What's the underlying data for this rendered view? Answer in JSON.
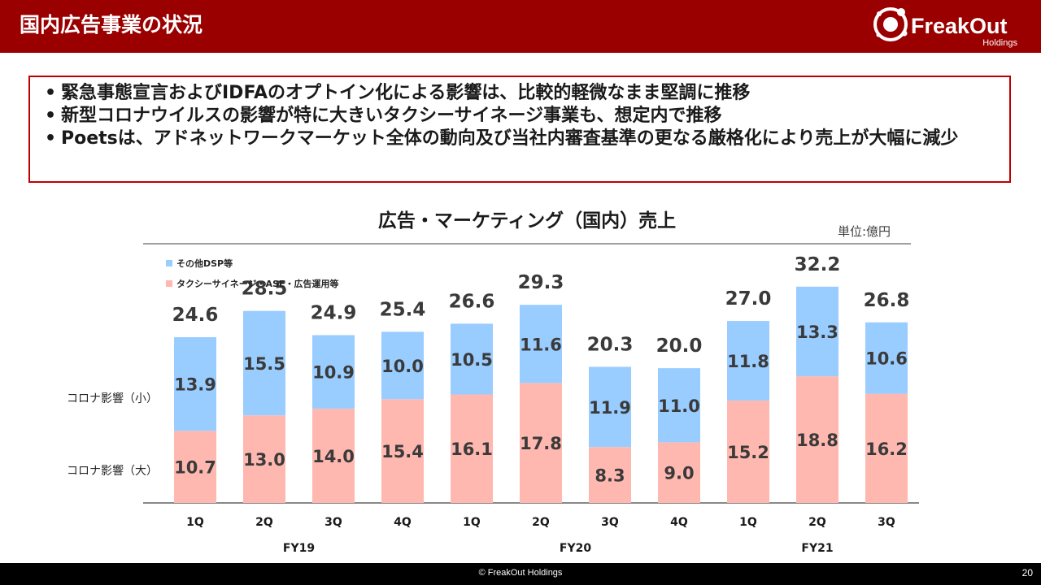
{
  "header": {
    "title": "国内広告事業の状況",
    "logo_text": "FreakOut",
    "logo_sub": "Holdings",
    "background": "#9b0000"
  },
  "bullets": [
    "緊急事態宣言およびIDFAのオプトイン化による影響は、比較的軽微なまま堅調に推移",
    "新型コロナウイルスの影響が特に大きいタクシーサイネージ事業も、想定内で推移",
    "Poetsは、アドネットワークマーケット全体の動向及び当社内審査基準の更なる厳格化により売上が大幅に減少"
  ],
  "chart_data": {
    "type": "bar",
    "stacked": true,
    "title": "広告・マーケティング（国内）売上",
    "unit": "単位:億円",
    "categories": [
      "1Q",
      "2Q",
      "3Q",
      "4Q",
      "1Q",
      "2Q",
      "3Q",
      "4Q",
      "1Q",
      "2Q",
      "3Q"
    ],
    "groups": [
      {
        "label": "FY19",
        "start": 0,
        "end": 3
      },
      {
        "label": "FY20",
        "start": 4,
        "end": 7
      },
      {
        "label": "FY21",
        "start": 8,
        "end": 10
      }
    ],
    "series": [
      {
        "name": "タクシーサイネージ・ASE・広告運用等",
        "color": "#ffb8b0",
        "values": [
          "10.7",
          "13.0",
          "14.0",
          "15.4",
          "16.1",
          "17.8",
          "8.3",
          "9.0",
          "15.2",
          "18.8",
          "16.2"
        ]
      },
      {
        "name": "その他DSP等",
        "color": "#99ccff",
        "values": [
          "13.9",
          "15.5",
          "10.9",
          "10.0",
          "10.5",
          "11.6",
          "11.9",
          "11.0",
          "11.8",
          "13.3",
          "10.6"
        ]
      }
    ],
    "totals": [
      "24.6",
      "28.5",
      "24.9",
      "25.4",
      "26.6",
      "29.3",
      "20.3",
      "20.0",
      "27.0",
      "32.2",
      "26.8"
    ],
    "side_labels": {
      "upper": "コロナ影響（小）",
      "lower": "コロナ影響（大）"
    },
    "legend_position": "top-left",
    "ylim": [
      0,
      34
    ],
    "grid": false
  },
  "footer": {
    "copyright": "© FreakOut Holdings",
    "page": "20"
  }
}
